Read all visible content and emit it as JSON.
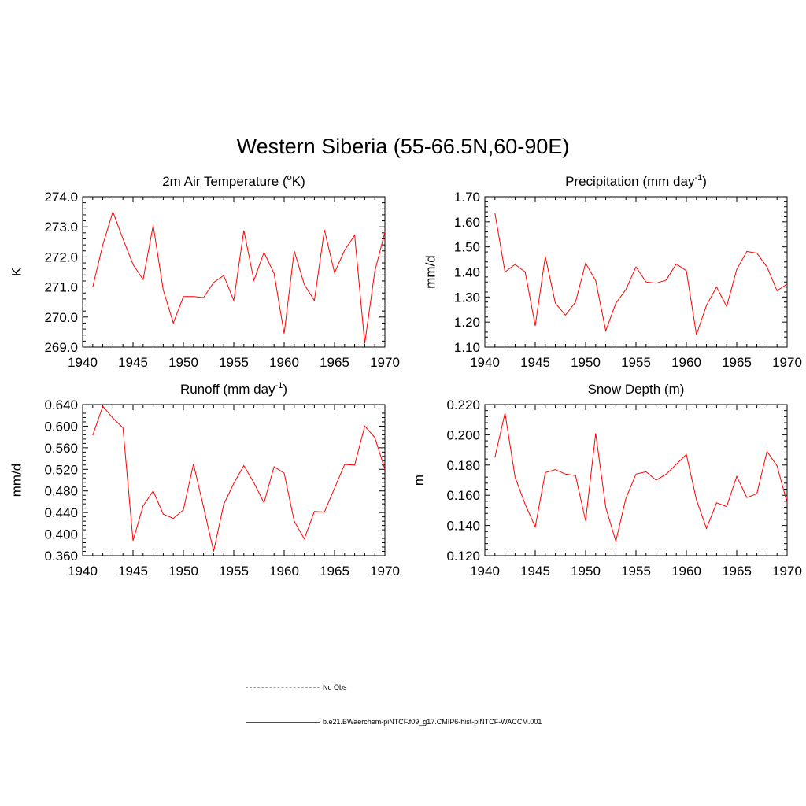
{
  "title": "Western Siberia (55-66.5N,60-90E)",
  "chart_data": [
    {
      "type": "line",
      "title": "2m Air Temperature",
      "title_sup": "o",
      "title_pre": "2m Air Temperature (",
      "title_post": "K)",
      "ylabel": "K",
      "xlim": [
        1940,
        1970
      ],
      "ylim": [
        269.0,
        274.0
      ],
      "yticks": [
        "269.0",
        "270.0",
        "271.0",
        "272.0",
        "273.0",
        "274.0"
      ],
      "xticks": [
        "1940",
        "1945",
        "1950",
        "1955",
        "1960",
        "1965",
        "1970"
      ],
      "series": [
        {
          "color": "#ff0000",
          "x": [
            1941,
            1942,
            1943,
            1944,
            1945,
            1946,
            1947,
            1948,
            1949,
            1950,
            1951,
            1952,
            1953,
            1954,
            1955,
            1956,
            1957,
            1958,
            1959,
            1960,
            1961,
            1962,
            1963,
            1964,
            1965,
            1966,
            1967,
            1968,
            1969,
            1970
          ],
          "y": [
            271.0,
            272.4,
            273.5,
            272.6,
            271.75,
            271.25,
            273.05,
            270.9,
            269.8,
            270.68,
            270.68,
            270.65,
            271.15,
            271.38,
            270.55,
            272.88,
            271.22,
            272.15,
            271.45,
            269.45,
            272.2,
            271.08,
            270.55,
            272.9,
            271.47,
            272.22,
            272.72,
            269.12,
            271.52,
            272.83
          ]
        }
      ]
    },
    {
      "type": "line",
      "title": "Precipitation",
      "title_pre": "Precipitation (mm day",
      "title_sup": "-1",
      "title_post": ")",
      "ylabel": "mm/d",
      "xlim": [
        1940,
        1970
      ],
      "ylim": [
        1.1,
        1.7
      ],
      "yticks": [
        "1.10",
        "1.20",
        "1.30",
        "1.40",
        "1.50",
        "1.60",
        "1.70"
      ],
      "xticks": [
        "1940",
        "1945",
        "1950",
        "1955",
        "1960",
        "1965",
        "1970"
      ],
      "series": [
        {
          "color": "#ff0000",
          "x": [
            1941,
            1942,
            1943,
            1944,
            1945,
            1946,
            1947,
            1948,
            1949,
            1950,
            1951,
            1952,
            1953,
            1954,
            1955,
            1956,
            1957,
            1958,
            1959,
            1960,
            1961,
            1962,
            1963,
            1964,
            1965,
            1966,
            1967,
            1968,
            1969,
            1970
          ],
          "y": [
            1.635,
            1.4,
            1.43,
            1.4,
            1.185,
            1.462,
            1.275,
            1.228,
            1.28,
            1.435,
            1.365,
            1.165,
            1.275,
            1.33,
            1.42,
            1.36,
            1.355,
            1.368,
            1.432,
            1.405,
            1.15,
            1.267,
            1.34,
            1.262,
            1.41,
            1.482,
            1.475,
            1.42,
            1.325,
            1.352
          ]
        }
      ]
    },
    {
      "type": "line",
      "title": "Runoff",
      "title_pre": "Runoff (mm day",
      "title_sup": "-1",
      "title_post": ")",
      "ylabel": "mm/d",
      "xlim": [
        1940,
        1970
      ],
      "ylim": [
        0.36,
        0.64
      ],
      "yticks": [
        "0.360",
        "0.400",
        "0.440",
        "0.480",
        "0.520",
        "0.560",
        "0.600",
        "0.640"
      ],
      "xticks": [
        "1940",
        "1945",
        "1950",
        "1955",
        "1960",
        "1965",
        "1970"
      ],
      "series": [
        {
          "color": "#ff0000",
          "x": [
            1941,
            1942,
            1943,
            1944,
            1945,
            1946,
            1947,
            1948,
            1949,
            1950,
            1951,
            1952,
            1953,
            1954,
            1955,
            1956,
            1957,
            1958,
            1959,
            1960,
            1961,
            1962,
            1963,
            1964,
            1965,
            1966,
            1967,
            1968,
            1969,
            1970
          ],
          "y": [
            0.583,
            0.637,
            0.615,
            0.597,
            0.388,
            0.452,
            0.48,
            0.437,
            0.429,
            0.445,
            0.53,
            0.45,
            0.368,
            0.455,
            0.494,
            0.527,
            0.495,
            0.458,
            0.525,
            0.513,
            0.424,
            0.391,
            0.442,
            0.441,
            0.485,
            0.529,
            0.528,
            0.6,
            0.579,
            0.52
          ]
        }
      ]
    },
    {
      "type": "line",
      "title": "Snow Depth (m)",
      "title_pre": "Snow Depth (m)",
      "title_sup": "",
      "title_post": "",
      "ylabel": "m",
      "xlim": [
        1940,
        1970
      ],
      "ylim": [
        0.12,
        0.22
      ],
      "yticks": [
        "0.120",
        "0.140",
        "0.160",
        "0.180",
        "0.200",
        "0.220"
      ],
      "xticks": [
        "1940",
        "1945",
        "1950",
        "1955",
        "1960",
        "1965",
        "1970"
      ],
      "series": [
        {
          "color": "#ff0000",
          "x": [
            1941,
            1942,
            1943,
            1944,
            1945,
            1946,
            1947,
            1948,
            1949,
            1950,
            1951,
            1952,
            1953,
            1954,
            1955,
            1956,
            1957,
            1958,
            1959,
            1960,
            1961,
            1962,
            1963,
            1964,
            1965,
            1966,
            1967,
            1968,
            1969,
            1970
          ],
          "y": [
            0.185,
            0.2145,
            0.172,
            0.154,
            0.139,
            0.175,
            0.177,
            0.174,
            0.173,
            0.143,
            0.201,
            0.152,
            0.1295,
            0.158,
            0.174,
            0.1755,
            0.17,
            0.174,
            0.1805,
            0.187,
            0.157,
            0.138,
            0.155,
            0.1525,
            0.1725,
            0.1585,
            0.161,
            0.189,
            0.1795,
            0.155
          ]
        }
      ]
    }
  ],
  "legend": {
    "items": [
      {
        "label": "No Obs",
        "color": "#9999dd",
        "style": "dashed"
      },
      {
        "label": "b.e21.BWaerchem-piNTCF.f09_g17.CMIP6-hist-piNTCF-WACCM.001",
        "color": "#ff0000",
        "style": "solid"
      }
    ]
  }
}
